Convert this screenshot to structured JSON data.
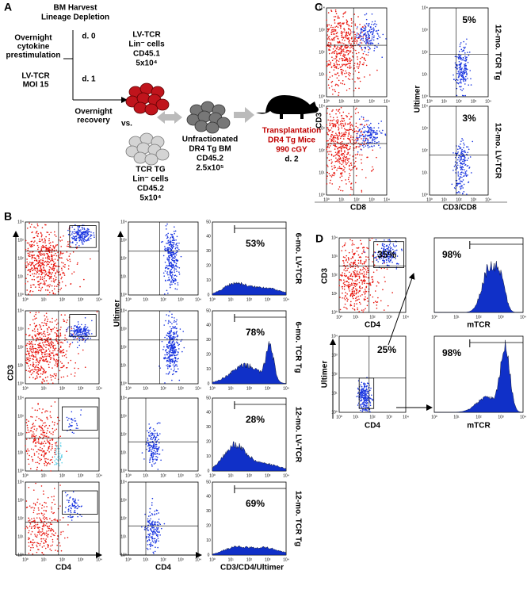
{
  "panel_a": {
    "label": "A",
    "title": [
      "BM Harvest",
      "Lineage Depletion"
    ],
    "step0": [
      "Overnight",
      "cytokine",
      "prestimulation"
    ],
    "day0": "d. 0",
    "step1": [
      "LV-TCR",
      "MOI 15"
    ],
    "day1": "d. 1",
    "recovery": [
      "Overnight",
      "recovery"
    ],
    "lv_cells": [
      "LV-TCR",
      "Lin⁻ cells",
      "CD45.1",
      "5x10⁴"
    ],
    "vs": "vs.",
    "tg_cells": [
      "TCR TG",
      "Lin⁻ cells",
      "CD45.2",
      "5x10⁴"
    ],
    "bm": [
      "Unfractionated",
      "DR4 Tg BM",
      "CD45.2",
      "2.5x10⁵"
    ],
    "transplant": [
      "Transplantation",
      "DR4 Tg Mice",
      "990 cGY"
    ],
    "day2": "d. 2"
  },
  "panel_b": {
    "label": "B",
    "rows": [
      {
        "name": "6-mo. LV-TCR",
        "percent": "53%"
      },
      {
        "name": "6-mo. TCR Tg",
        "percent": "78%"
      },
      {
        "name": "12-mo. LV-TCR",
        "percent": "28%"
      },
      {
        "name": "12-mo. TCR Tg",
        "percent": "69%"
      }
    ],
    "axes": {
      "cd3": "CD3",
      "cd4_left": "CD4",
      "ultimer": "Ultimer",
      "cd4_mid": "CD4",
      "hist": "CD3/CD4/Ultimer"
    }
  },
  "panel_c": {
    "label": "C",
    "rows": [
      {
        "name": "12-mo. TCR Tg",
        "percent": "5%"
      },
      {
        "name": "12-mo. LV-TCR",
        "percent": "3%"
      }
    ],
    "axes": {
      "cd3": "CD3",
      "cd8": "CD8",
      "ultimer": "Ultimer",
      "cd3cd8": "CD3/CD8"
    }
  },
  "panel_d": {
    "label": "D",
    "top": {
      "gate_percent": "35%",
      "hist_percent": "98%"
    },
    "bottom": {
      "gate_percent": "25%",
      "hist_percent": "98%"
    },
    "axes": {
      "cd3": "CD3",
      "cd4_top": "CD4",
      "mtcr_top": "mTCR",
      "ultimer": "Ultimer",
      "cd4_bottom": "CD4",
      "mtcr_bottom": "mTCR"
    }
  },
  "log_ticks": [
    "10⁰",
    "10¹",
    "10²",
    "10³",
    "10⁴"
  ],
  "hist_ticks": [
    "0",
    "10",
    "20",
    "30",
    "40",
    "50"
  ]
}
